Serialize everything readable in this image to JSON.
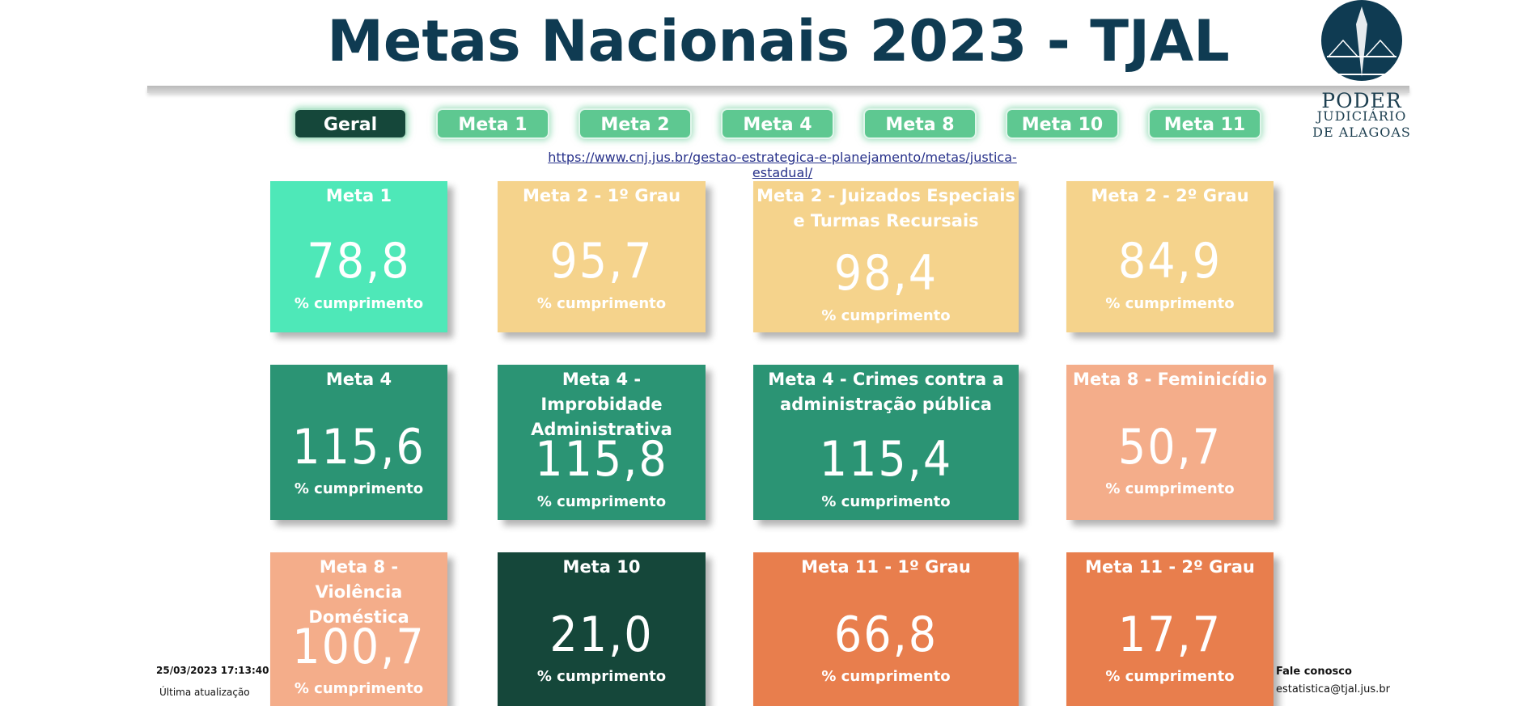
{
  "header": {
    "title": "Metas Nacionais 2023 - TJAL",
    "logo": {
      "line1": "PODER",
      "line2": "JUDICIÁRIO",
      "line3": "DE ALAGOAS"
    }
  },
  "nav": {
    "buttons": [
      {
        "label": "Geral",
        "active": true
      },
      {
        "label": "Meta 1",
        "active": false
      },
      {
        "label": "Meta 2",
        "active": false
      },
      {
        "label": "Meta 4",
        "active": false
      },
      {
        "label": "Meta 8",
        "active": false
      },
      {
        "label": "Meta 10",
        "active": false
      },
      {
        "label": "Meta 11",
        "active": false
      }
    ]
  },
  "link": {
    "text": "https://www.cnj.jus.br/gestao-estrategica-e-planejamento/metas/justica-estadual/"
  },
  "cards": [
    {
      "title": "Meta 1",
      "value": "78,8",
      "sub": "% cumprimento",
      "color": "#4ee8b8"
    },
    {
      "title": "Meta 2 - 1º Grau",
      "value": "95,7",
      "sub": "% cumprimento",
      "color": "#f5d38c"
    },
    {
      "title": "Meta 2 - Juizados Especiais e Turmas Recursais",
      "value": "98,4",
      "sub": "% cumprimento",
      "color": "#f5d38c"
    },
    {
      "title": "Meta 2 - 2º Grau",
      "value": "84,9",
      "sub": "% cumprimento",
      "color": "#f5d38c"
    },
    {
      "title": "Meta 4",
      "value": "115,6",
      "sub": "% cumprimento",
      "color": "#2b9474"
    },
    {
      "title": "Meta 4 - Improbidade Administrativa",
      "value": "115,8",
      "sub": "% cumprimento",
      "color": "#2b9474"
    },
    {
      "title": "Meta 4 - Crimes contra a administração pública",
      "value": "115,4",
      "sub": "% cumprimento",
      "color": "#2b9474"
    },
    {
      "title": "Meta 8 - Feminicídio",
      "value": "50,7",
      "sub": "% cumprimento",
      "color": "#f4ad8a"
    },
    {
      "title": "Meta 8 - Violência Doméstica",
      "value": "100,7",
      "sub": "% cumprimento",
      "color": "#f4ad8a"
    },
    {
      "title": "Meta 10",
      "value": "21,0",
      "sub": "% cumprimento",
      "color": "#15473a"
    },
    {
      "title": "Meta 11 - 1º Grau",
      "value": "66,8",
      "sub": "% cumprimento",
      "color": "#e87e4d"
    },
    {
      "title": "Meta 11 - 2º Grau",
      "value": "17,7",
      "sub": "% cumprimento",
      "color": "#e87e4d"
    }
  ],
  "footer": {
    "timestamp": "25/03/2023 17:13:40",
    "last_update_label": "Última atualização",
    "contact_label": "Fale conosco",
    "contact_email": "estatistica@tjal.jus.br"
  }
}
